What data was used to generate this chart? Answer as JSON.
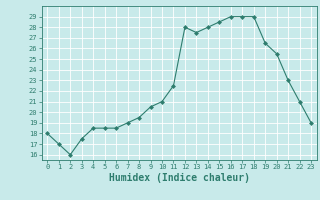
{
  "x": [
    0,
    1,
    2,
    3,
    4,
    5,
    6,
    7,
    8,
    9,
    10,
    11,
    12,
    13,
    14,
    15,
    16,
    17,
    18,
    19,
    20,
    21,
    22,
    23
  ],
  "y": [
    18,
    17,
    16,
    17.5,
    18.5,
    18.5,
    18.5,
    19,
    19.5,
    20.5,
    21,
    22.5,
    28,
    27.5,
    28,
    28.5,
    29,
    29,
    29,
    26.5,
    25.5,
    23,
    21,
    19
  ],
  "line_color": "#2e7d6e",
  "marker": "D",
  "marker_size": 2.0,
  "bg_color": "#c8eaea",
  "grid_color": "#b0d8d8",
  "tick_color": "#2e7d6e",
  "xlabel": "Humidex (Indice chaleur)",
  "xlabel_fontsize": 7,
  "ylim": [
    15.5,
    30.0
  ],
  "yticks": [
    16,
    17,
    18,
    19,
    20,
    21,
    22,
    23,
    24,
    25,
    26,
    27,
    28,
    29
  ],
  "xticks": [
    0,
    1,
    2,
    3,
    4,
    5,
    6,
    7,
    8,
    9,
    10,
    11,
    12,
    13,
    14,
    15,
    16,
    17,
    18,
    19,
    20,
    21,
    22,
    23
  ],
  "xlim": [
    -0.5,
    23.5
  ]
}
